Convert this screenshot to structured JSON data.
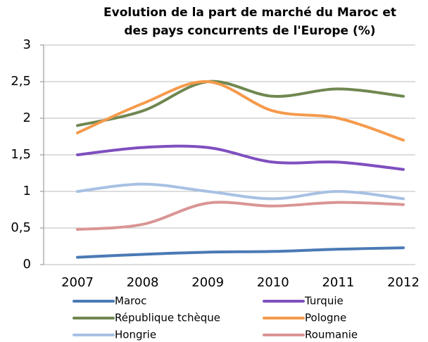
{
  "chart_data": {
    "type": "line",
    "title": [
      "Evolution de la part de marché du Maroc et",
      "des pays concurrents de l'Europe (%)"
    ],
    "categories": [
      "2007",
      "2008",
      "2009",
      "2010",
      "2011",
      "2012"
    ],
    "series": [
      {
        "name": "Maroc",
        "color": "#4a7ab5",
        "values": [
          0.1,
          0.14,
          0.17,
          0.18,
          0.21,
          0.23
        ]
      },
      {
        "name": "Turquie",
        "color": "#7f4fbf",
        "values": [
          1.5,
          1.6,
          1.6,
          1.4,
          1.4,
          1.3
        ]
      },
      {
        "name": "République tchèque",
        "color": "#6f8750",
        "values": [
          1.9,
          2.1,
          2.5,
          2.3,
          2.4,
          2.3
        ]
      },
      {
        "name": "Pologne",
        "color": "#f59a4c",
        "values": [
          1.8,
          2.2,
          2.5,
          2.1,
          2.0,
          1.7
        ]
      },
      {
        "name": "Hongrie",
        "color": "#a7c1e3",
        "values": [
          1.0,
          1.1,
          1.0,
          0.9,
          1.0,
          0.9
        ]
      },
      {
        "name": "Roumanie",
        "color": "#d99594",
        "values": [
          0.48,
          0.55,
          0.84,
          0.8,
          0.85,
          0.82
        ]
      }
    ],
    "ylim": [
      0,
      3
    ],
    "yticks": [
      0,
      {
        "value": 0.5,
        "label": "0,5"
      },
      1,
      {
        "value": 1.5,
        "label": "1,5"
      },
      2,
      {
        "value": 2.5,
        "label": "2,5"
      },
      3
    ],
    "grid": true
  }
}
